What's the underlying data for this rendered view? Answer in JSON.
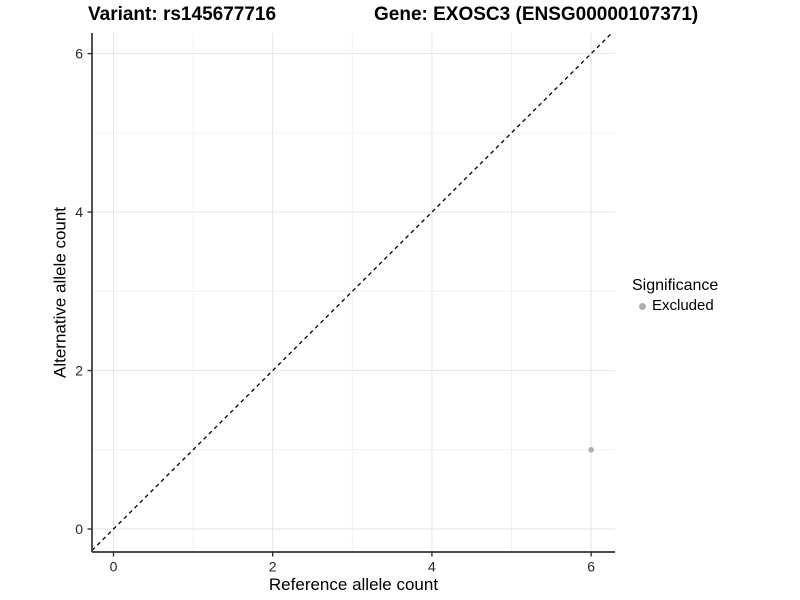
{
  "chart_data": {
    "type": "scatter",
    "title_left": "Variant: rs145677716",
    "title_right": "Gene: EXOSC3 (ENSG00000107371)",
    "xlabel": "Reference allele count",
    "ylabel": "Alternative allele count",
    "xlim": [
      -0.27,
      6.3
    ],
    "ylim": [
      -0.29,
      6.26
    ],
    "x_major_ticks": [
      0,
      2,
      4,
      6
    ],
    "y_major_ticks": [
      0,
      2,
      4,
      6
    ],
    "x_minor_gridlines": [
      1,
      3,
      5
    ],
    "y_minor_gridlines": [
      1,
      3,
      5
    ],
    "grid": "major+minor",
    "reference_line": {
      "slope": 1,
      "intercept": 0,
      "style": "dashed",
      "color": "#000000"
    },
    "series": [
      {
        "name": "Excluded",
        "marker": "circle",
        "color": "#b0b0b0",
        "points": [
          [
            6,
            1
          ]
        ]
      }
    ],
    "legend": {
      "title": "Significance",
      "position": "right",
      "items": [
        {
          "label": "Excluded",
          "color": "#b0b0b0"
        }
      ]
    },
    "colors": {
      "background": "#ffffff",
      "major_grid": "#e5e5e5",
      "minor_grid": "#f2f2f2",
      "axis_line": "#333333",
      "tick_text": "#262626"
    }
  }
}
